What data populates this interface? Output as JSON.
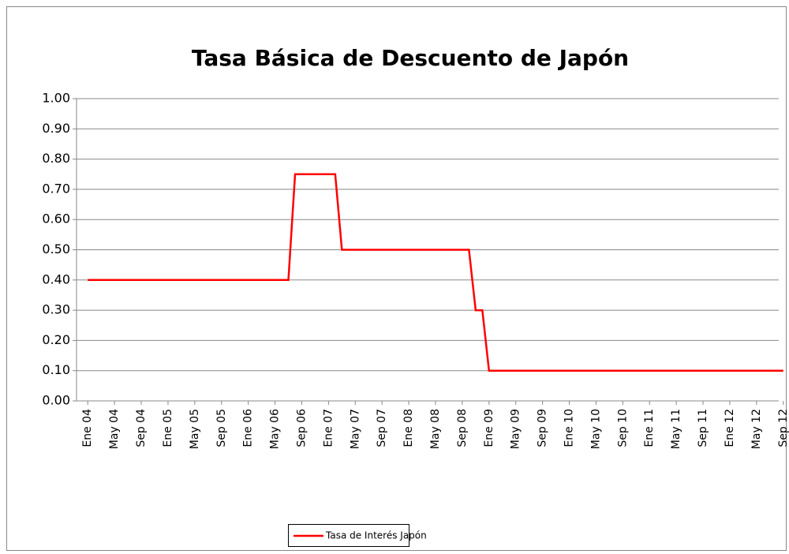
{
  "chart_data": {
    "type": "line",
    "title": "Tasa Básica de Descuento de Japón",
    "categories": [
      "Ene 04",
      null,
      null,
      null,
      "May 04",
      null,
      null,
      null,
      "Sep 04",
      null,
      null,
      null,
      "Ene 05",
      null,
      null,
      null,
      "May 05",
      null,
      null,
      null,
      "Sep 05",
      null,
      null,
      null,
      "Ene 06",
      null,
      null,
      null,
      "May 06",
      null,
      null,
      null,
      "Sep 06",
      null,
      null,
      null,
      "Ene 07",
      null,
      null,
      null,
      "May 07",
      null,
      null,
      null,
      "Sep 07",
      null,
      null,
      null,
      "Ene 08",
      null,
      null,
      null,
      "May 08",
      null,
      null,
      null,
      "Sep 08",
      null,
      null,
      null,
      "Ene 09",
      null,
      null,
      null,
      "May 09",
      null,
      null,
      null,
      "Sep 09",
      null,
      null,
      null,
      "Ene 10",
      null,
      null,
      null,
      "May 10",
      null,
      null,
      null,
      "Sep 10",
      null,
      null,
      null,
      "Ene 11",
      null,
      null,
      null,
      "May 11",
      null,
      null,
      null,
      "Sep 11",
      null,
      null,
      null,
      "Ene 12",
      null,
      null,
      null,
      "May 12",
      null,
      null,
      null,
      "Sep 12"
    ],
    "series": [
      {
        "name": "Tasa de Interés Japón",
        "color": "#ff0000",
        "values": [
          0.4,
          0.4,
          0.4,
          0.4,
          0.4,
          0.4,
          0.4,
          0.4,
          0.4,
          0.4,
          0.4,
          0.4,
          0.4,
          0.4,
          0.4,
          0.4,
          0.4,
          0.4,
          0.4,
          0.4,
          0.4,
          0.4,
          0.4,
          0.4,
          0.4,
          0.4,
          0.4,
          0.4,
          0.4,
          0.4,
          0.4,
          0.75,
          0.75,
          0.75,
          0.75,
          0.75,
          0.75,
          0.75,
          0.5,
          0.5,
          0.5,
          0.5,
          0.5,
          0.5,
          0.5,
          0.5,
          0.5,
          0.5,
          0.5,
          0.5,
          0.5,
          0.5,
          0.5,
          0.5,
          0.5,
          0.5,
          0.5,
          0.5,
          0.3,
          0.3,
          0.1,
          0.1,
          0.1,
          0.1,
          0.1,
          0.1,
          0.1,
          0.1,
          0.1,
          0.1,
          0.1,
          0.1,
          0.1,
          0.1,
          0.1,
          0.1,
          0.1,
          0.1,
          0.1,
          0.1,
          0.1,
          0.1,
          0.1,
          0.1,
          0.1,
          0.1,
          0.1,
          0.1,
          0.1,
          0.1,
          0.1,
          0.1,
          0.1,
          0.1,
          0.1,
          0.1,
          0.1,
          0.1,
          0.1,
          0.1,
          0.1,
          0.1,
          0.1,
          0.1,
          0.1
        ]
      }
    ],
    "ylim": [
      0,
      1
    ],
    "yticks": [
      {
        "value": 0,
        "label": "0.00"
      },
      {
        "value": 0.1,
        "label": "0.10"
      },
      {
        "value": 0.2,
        "label": "0.20"
      },
      {
        "value": 0.3,
        "label": "0.30"
      },
      {
        "value": 0.4,
        "label": "0.40"
      },
      {
        "value": 0.5,
        "label": "0.50"
      },
      {
        "value": 0.6,
        "label": "0.60"
      },
      {
        "value": 0.7,
        "label": "0.70"
      },
      {
        "value": 0.8,
        "label": "0.80"
      },
      {
        "value": 0.9,
        "label": "0.90"
      },
      {
        "value": 1,
        "label": "1.00"
      }
    ],
    "grid": true,
    "legend": "bottom"
  }
}
